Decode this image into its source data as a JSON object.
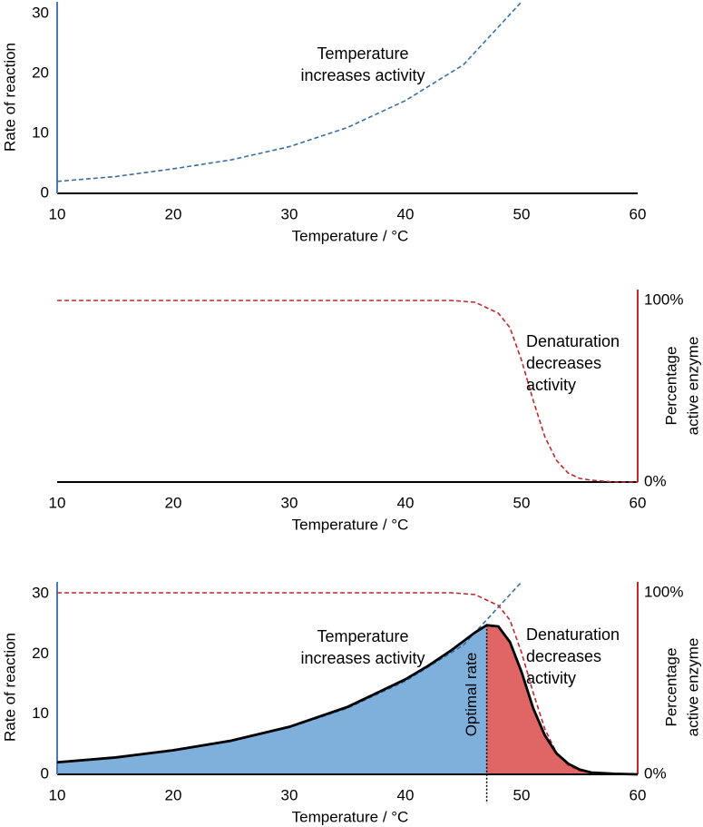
{
  "chart_data": [
    {
      "type": "line",
      "xlabel": "Temperature / °C",
      "ylabel": "Rate of reaction",
      "xlim": [
        10,
        60
      ],
      "xticks": [
        10,
        20,
        30,
        40,
        50,
        60
      ],
      "ylim": [
        0,
        32
      ],
      "yticks": [
        0,
        10,
        20,
        30
      ],
      "y_axis_color": "#4a78b8",
      "series": [
        {
          "color": "#3a6ea5",
          "dash": true,
          "x": [
            10,
            15,
            20,
            25,
            30,
            35,
            40,
            45,
            50
          ],
          "values": [
            2,
            2.8,
            4.1,
            5.6,
            7.8,
            11,
            15.5,
            21.5,
            32
          ]
        }
      ],
      "annotations": [
        [
          "Temperature",
          "increases activity"
        ]
      ]
    },
    {
      "type": "line",
      "xlabel": "Temperature / °C",
      "y2label": [
        "Percentage",
        "active enzyme"
      ],
      "xlim": [
        10,
        60
      ],
      "xticks": [
        10,
        20,
        30,
        40,
        50,
        60
      ],
      "y2lim": [
        0,
        106
      ],
      "y2ticks": [
        {
          "value": 100,
          "label": "100%"
        },
        {
          "value": 0,
          "label": "0%"
        }
      ],
      "y2_axis_color": "#c0282d",
      "series": [
        {
          "color": "#c0282d",
          "dash": true,
          "axis": "y2",
          "x": [
            10,
            20,
            30,
            40,
            44,
            46,
            48,
            49,
            50,
            51,
            52,
            53,
            54,
            55,
            56,
            58,
            60
          ],
          "values": [
            100,
            100,
            100,
            100,
            100,
            99,
            93,
            85,
            67,
            45,
            25,
            12,
            5,
            2,
            1,
            0,
            0
          ]
        }
      ],
      "annotations": [
        [
          "Denaturation",
          "decreases",
          "activity"
        ]
      ]
    },
    {
      "type": "line",
      "xlabel": "Temperature / °C",
      "ylabel": "Rate of reaction",
      "y2label": [
        "Percentage",
        "active enzyme"
      ],
      "xlim": [
        10,
        60
      ],
      "xticks": [
        10,
        20,
        30,
        40,
        50,
        60
      ],
      "ylim": [
        0,
        32
      ],
      "yticks": [
        0,
        10,
        20,
        30
      ],
      "y_axis_color": "#4a78b8",
      "y2lim": [
        0,
        106
      ],
      "y2ticks": [
        {
          "value": 100,
          "label": "100%"
        },
        {
          "value": 0,
          "label": "0%"
        }
      ],
      "y2_axis_color": "#c0282d",
      "series": [
        {
          "color": "#3a6ea5",
          "dash": true,
          "x": [
            10,
            15,
            20,
            25,
            30,
            35,
            40,
            45,
            50
          ],
          "values": [
            2,
            2.8,
            4.1,
            5.6,
            7.8,
            11,
            15.5,
            21.5,
            32
          ]
        },
        {
          "color": "#c0282d",
          "dash": true,
          "axis": "y2",
          "x": [
            10,
            20,
            30,
            40,
            44,
            46,
            48,
            49,
            50,
            51,
            52,
            53,
            54,
            55,
            56,
            58,
            60
          ],
          "values": [
            100,
            100,
            100,
            100,
            100,
            99,
            93,
            85,
            67,
            45,
            25,
            12,
            5,
            2,
            1,
            0,
            0
          ]
        },
        {
          "color": "#000000",
          "fill": [
            "#7fb0dc",
            "#e06666"
          ],
          "x": [
            10,
            15,
            20,
            25,
            30,
            35,
            40,
            42,
            44,
            46,
            47,
            48,
            49,
            50,
            51,
            52,
            53,
            54,
            55,
            56,
            58,
            60
          ],
          "values": [
            2,
            2.8,
            4,
            5.6,
            7.9,
            11.2,
            15.8,
            18.1,
            20.7,
            23.6,
            24.8,
            24.6,
            22,
            17,
            11,
            6.5,
            3.5,
            1.8,
            0.8,
            0.3,
            0.1,
            0
          ]
        }
      ],
      "optimal_x": 47,
      "optimal_label": "Optimal rate",
      "annotations": [
        [
          "Temperature",
          "increases activity"
        ],
        [
          "Denaturation",
          "decreases",
          "activity"
        ]
      ]
    }
  ]
}
